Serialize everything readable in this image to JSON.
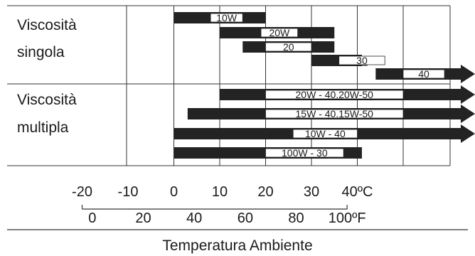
{
  "chart_data": {
    "type": "bar",
    "groups": [
      {
        "name": "Viscosità singola",
        "line1": "Viscosità",
        "line2": "singola"
      },
      {
        "name": "Viscosità multipla",
        "line1": "Viscosità",
        "line2": "multipla"
      }
    ],
    "series": [
      {
        "label": "10W",
        "group": 0,
        "range": [
          0,
          20
        ],
        "box": [
          8,
          15
        ],
        "arrow": false
      },
      {
        "label": "20W",
        "group": 0,
        "range": [
          10,
          35
        ],
        "box": [
          19,
          27
        ],
        "arrow": false
      },
      {
        "label": "20",
        "group": 0,
        "range": [
          15,
          35
        ],
        "box": [
          20,
          30
        ],
        "arrow": false
      },
      {
        "label": "30",
        "group": 0,
        "range": [
          30,
          41
        ],
        "box": [
          36,
          46
        ],
        "arrow": false
      },
      {
        "label": "40",
        "group": 0,
        "range": [
          44,
          65
        ],
        "box": [
          50,
          59
        ],
        "arrow": true
      },
      {
        "label": "20W - 40.20W-50",
        "group": 1,
        "range": [
          10,
          65
        ],
        "box": [
          20,
          50
        ],
        "arrow": true
      },
      {
        "label": "15W - 40.15W-50",
        "group": 1,
        "range": [
          3,
          65
        ],
        "box": [
          20,
          50
        ],
        "arrow": true
      },
      {
        "label": "10W - 40",
        "group": 1,
        "range": [
          0,
          65
        ],
        "box": [
          26,
          40
        ],
        "arrow": true
      },
      {
        "label": "100W - 30",
        "group": 1,
        "range": [
          0,
          41
        ],
        "box": [
          20,
          37
        ],
        "arrow": false
      }
    ],
    "x_celsius": {
      "ticks": [
        -20,
        -10,
        0,
        10,
        20,
        30,
        40
      ],
      "unit": "ºC"
    },
    "x_fahrenheit": {
      "ticks": [
        0,
        20,
        40,
        60,
        80,
        100
      ],
      "unit": "ºF"
    },
    "xlabel": "Temperatura Ambiente",
    "colors": {
      "bar": "#232323",
      "box": "#ffffff",
      "grid": "#333333",
      "text": "#1a1a1a"
    }
  }
}
